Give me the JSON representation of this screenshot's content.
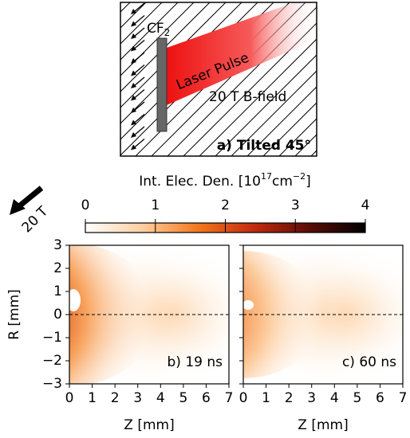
{
  "schematic": {
    "target_label": "CF",
    "target_subscript": "2",
    "laser_label": "Laser Pulse",
    "field_label": "20 T B-field",
    "panel_label": "a) Tilted 45°"
  },
  "field_arrow_label": "20 T",
  "chart_data": [
    {
      "type": "colorbar",
      "title": "Int. Elec. Den. [",
      "title_base": "10",
      "title_exp": "17",
      "title_unit": "cm",
      "title_unit_exp": "−2",
      "title_close": "]",
      "xlim": [
        0,
        4
      ],
      "xticks": [
        0,
        1,
        2,
        3,
        4
      ],
      "colors": [
        "#ffffff",
        "#fdd0a2",
        "#f4791f",
        "#c42a0e",
        "#5a0d06",
        "#000000"
      ]
    },
    {
      "type": "heatmap",
      "annotation": "b) 19 ns",
      "xlabel": "Z [mm]",
      "ylabel": "R [mm]",
      "xlim": [
        0,
        7
      ],
      "ylim": [
        -3,
        3
      ],
      "xticks": [
        0,
        1,
        2,
        3,
        4,
        5,
        6,
        7
      ],
      "yticks": [
        {
          "value": -3,
          "label": "−3"
        },
        {
          "value": -2,
          "label": "−2"
        },
        {
          "value": -1,
          "label": "−1"
        },
        0,
        1,
        2,
        3
      ],
      "ytick_labels": true
    },
    {
      "type": "heatmap",
      "annotation": "c) 60 ns",
      "xlabel": "Z [mm]",
      "xlim": [
        0,
        7
      ],
      "ylim": [
        -3,
        3
      ],
      "xticks": [
        0,
        1,
        2,
        3,
        4,
        5,
        6,
        7
      ],
      "yticks": [
        -3,
        -2,
        -1,
        0,
        1,
        2,
        3
      ],
      "ytick_labels": false
    }
  ]
}
